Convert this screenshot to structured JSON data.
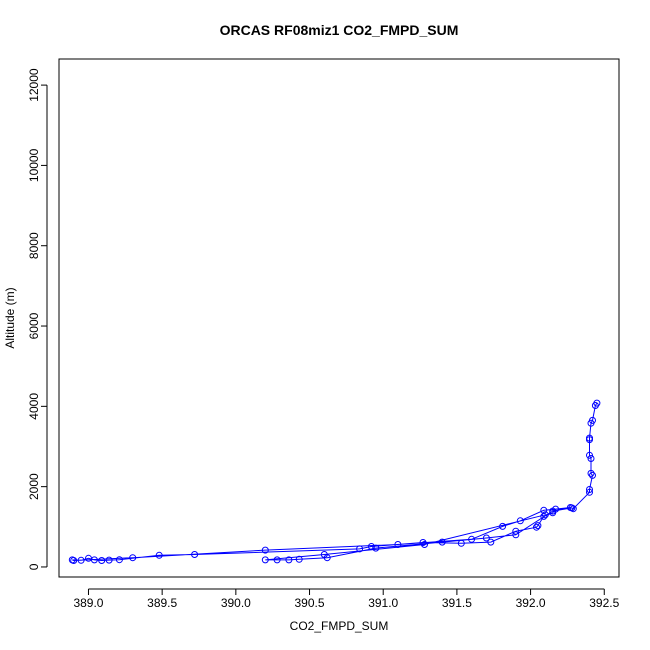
{
  "chart_data": {
    "type": "line",
    "title": "ORCAS RF08miz1 CO2_FMPD_SUM",
    "xlabel": "CO2_FMPD_SUM",
    "ylabel": "Altitude (m)",
    "xlim": [
      388.8,
      392.6
    ],
    "ylim": [
      -250,
      12650
    ],
    "xticks": [
      389.0,
      389.5,
      390.0,
      390.5,
      391.0,
      391.5,
      392.0,
      392.5
    ],
    "xtick_labels": [
      "389.0",
      "389.5",
      "390.0",
      "390.5",
      "391.0",
      "391.5",
      "392.0",
      "392.5"
    ],
    "yticks": [
      0,
      2000,
      4000,
      6000,
      8000,
      10000,
      12000
    ],
    "ytick_labels": [
      "0",
      "2000",
      "4000",
      "6000",
      "8000",
      "10000",
      "12000"
    ],
    "grid": false,
    "color": "#0000ff",
    "series": [
      {
        "points": [
          [
            392.45,
            4080
          ],
          [
            392.44,
            4020
          ],
          [
            392.42,
            3650
          ],
          [
            392.41,
            3580
          ],
          [
            392.4,
            3210
          ],
          [
            392.4,
            3170
          ],
          [
            392.4,
            2780
          ],
          [
            392.41,
            2700
          ],
          [
            392.41,
            2330
          ],
          [
            392.42,
            2280
          ],
          [
            392.4,
            1930
          ],
          [
            392.4,
            1860
          ],
          [
            392.29,
            1450
          ],
          [
            392.27,
            1480
          ],
          [
            392.17,
            1440
          ],
          [
            392.15,
            1350
          ],
          [
            392.09,
            1260
          ],
          [
            392.05,
            1030
          ],
          [
            392.04,
            990
          ],
          [
            391.9,
            890
          ],
          [
            391.73,
            620
          ],
          [
            391.53,
            590
          ],
          [
            391.27,
            610
          ],
          [
            390.92,
            510
          ],
          [
            390.84,
            450
          ],
          [
            389.72,
            310
          ],
          [
            389.48,
            290
          ],
          [
            389.21,
            180
          ],
          [
            389.14,
            170
          ],
          [
            389.09,
            160
          ],
          [
            389.04,
            175
          ],
          [
            389.0,
            215
          ],
          [
            388.95,
            165
          ],
          [
            388.89,
            175
          ],
          [
            388.9,
            160
          ],
          [
            389.3,
            230
          ],
          [
            390.2,
            420
          ],
          [
            391.1,
            560
          ],
          [
            391.6,
            690
          ],
          [
            391.81,
            1010
          ],
          [
            391.93,
            1150
          ],
          [
            392.09,
            1410
          ],
          [
            392.28,
            1470
          ],
          [
            392.15,
            1390
          ],
          [
            391.9,
            800
          ],
          [
            391.7,
            720
          ],
          [
            391.4,
            620
          ],
          [
            390.95,
            470
          ],
          [
            390.62,
            230
          ],
          [
            390.43,
            190
          ],
          [
            390.36,
            175
          ],
          [
            390.28,
            175
          ],
          [
            390.2,
            175
          ],
          [
            390.6,
            310
          ],
          [
            391.28,
            560
          ],
          [
            392.1,
            1300
          ]
        ]
      }
    ]
  }
}
